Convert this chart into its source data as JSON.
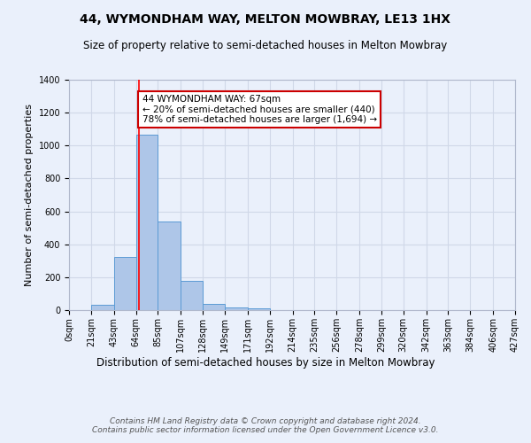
{
  "title": "44, WYMONDHAM WAY, MELTON MOWBRAY, LE13 1HX",
  "subtitle": "Size of property relative to semi-detached houses in Melton Mowbray",
  "xlabel": "Distribution of semi-detached houses by size in Melton Mowbray",
  "ylabel": "Number of semi-detached properties",
  "bin_labels": [
    "0sqm",
    "21sqm",
    "43sqm",
    "64sqm",
    "85sqm",
    "107sqm",
    "128sqm",
    "149sqm",
    "171sqm",
    "192sqm",
    "214sqm",
    "235sqm",
    "256sqm",
    "278sqm",
    "299sqm",
    "320sqm",
    "342sqm",
    "363sqm",
    "384sqm",
    "406sqm",
    "427sqm"
  ],
  "bin_edges": [
    0,
    21,
    43,
    64,
    85,
    107,
    128,
    149,
    171,
    192,
    214,
    235,
    256,
    278,
    299,
    320,
    342,
    363,
    384,
    406,
    427
  ],
  "bar_heights": [
    0,
    30,
    325,
    1065,
    540,
    178,
    37,
    18,
    10,
    0,
    0,
    0,
    0,
    0,
    0,
    0,
    0,
    0,
    0,
    0
  ],
  "bar_color": "#aec6e8",
  "bar_edgecolor": "#5b9bd5",
  "grid_color": "#d0d8e8",
  "background_color": "#eaf0fb",
  "red_line_x": 67,
  "annotation_text": "44 WYMONDHAM WAY: 67sqm\n← 20% of semi-detached houses are smaller (440)\n78% of semi-detached houses are larger (1,694) →",
  "annotation_box_color": "#ffffff",
  "annotation_box_edgecolor": "#cc0000",
  "ylim": [
    0,
    1400
  ],
  "yticks": [
    0,
    200,
    400,
    600,
    800,
    1000,
    1200,
    1400
  ],
  "footer": "Contains HM Land Registry data © Crown copyright and database right 2024.\nContains public sector information licensed under the Open Government Licence v3.0.",
  "title_fontsize": 10,
  "subtitle_fontsize": 8.5,
  "xlabel_fontsize": 8.5,
  "ylabel_fontsize": 8,
  "tick_fontsize": 7,
  "footer_fontsize": 6.5,
  "annot_fontsize": 7.5
}
